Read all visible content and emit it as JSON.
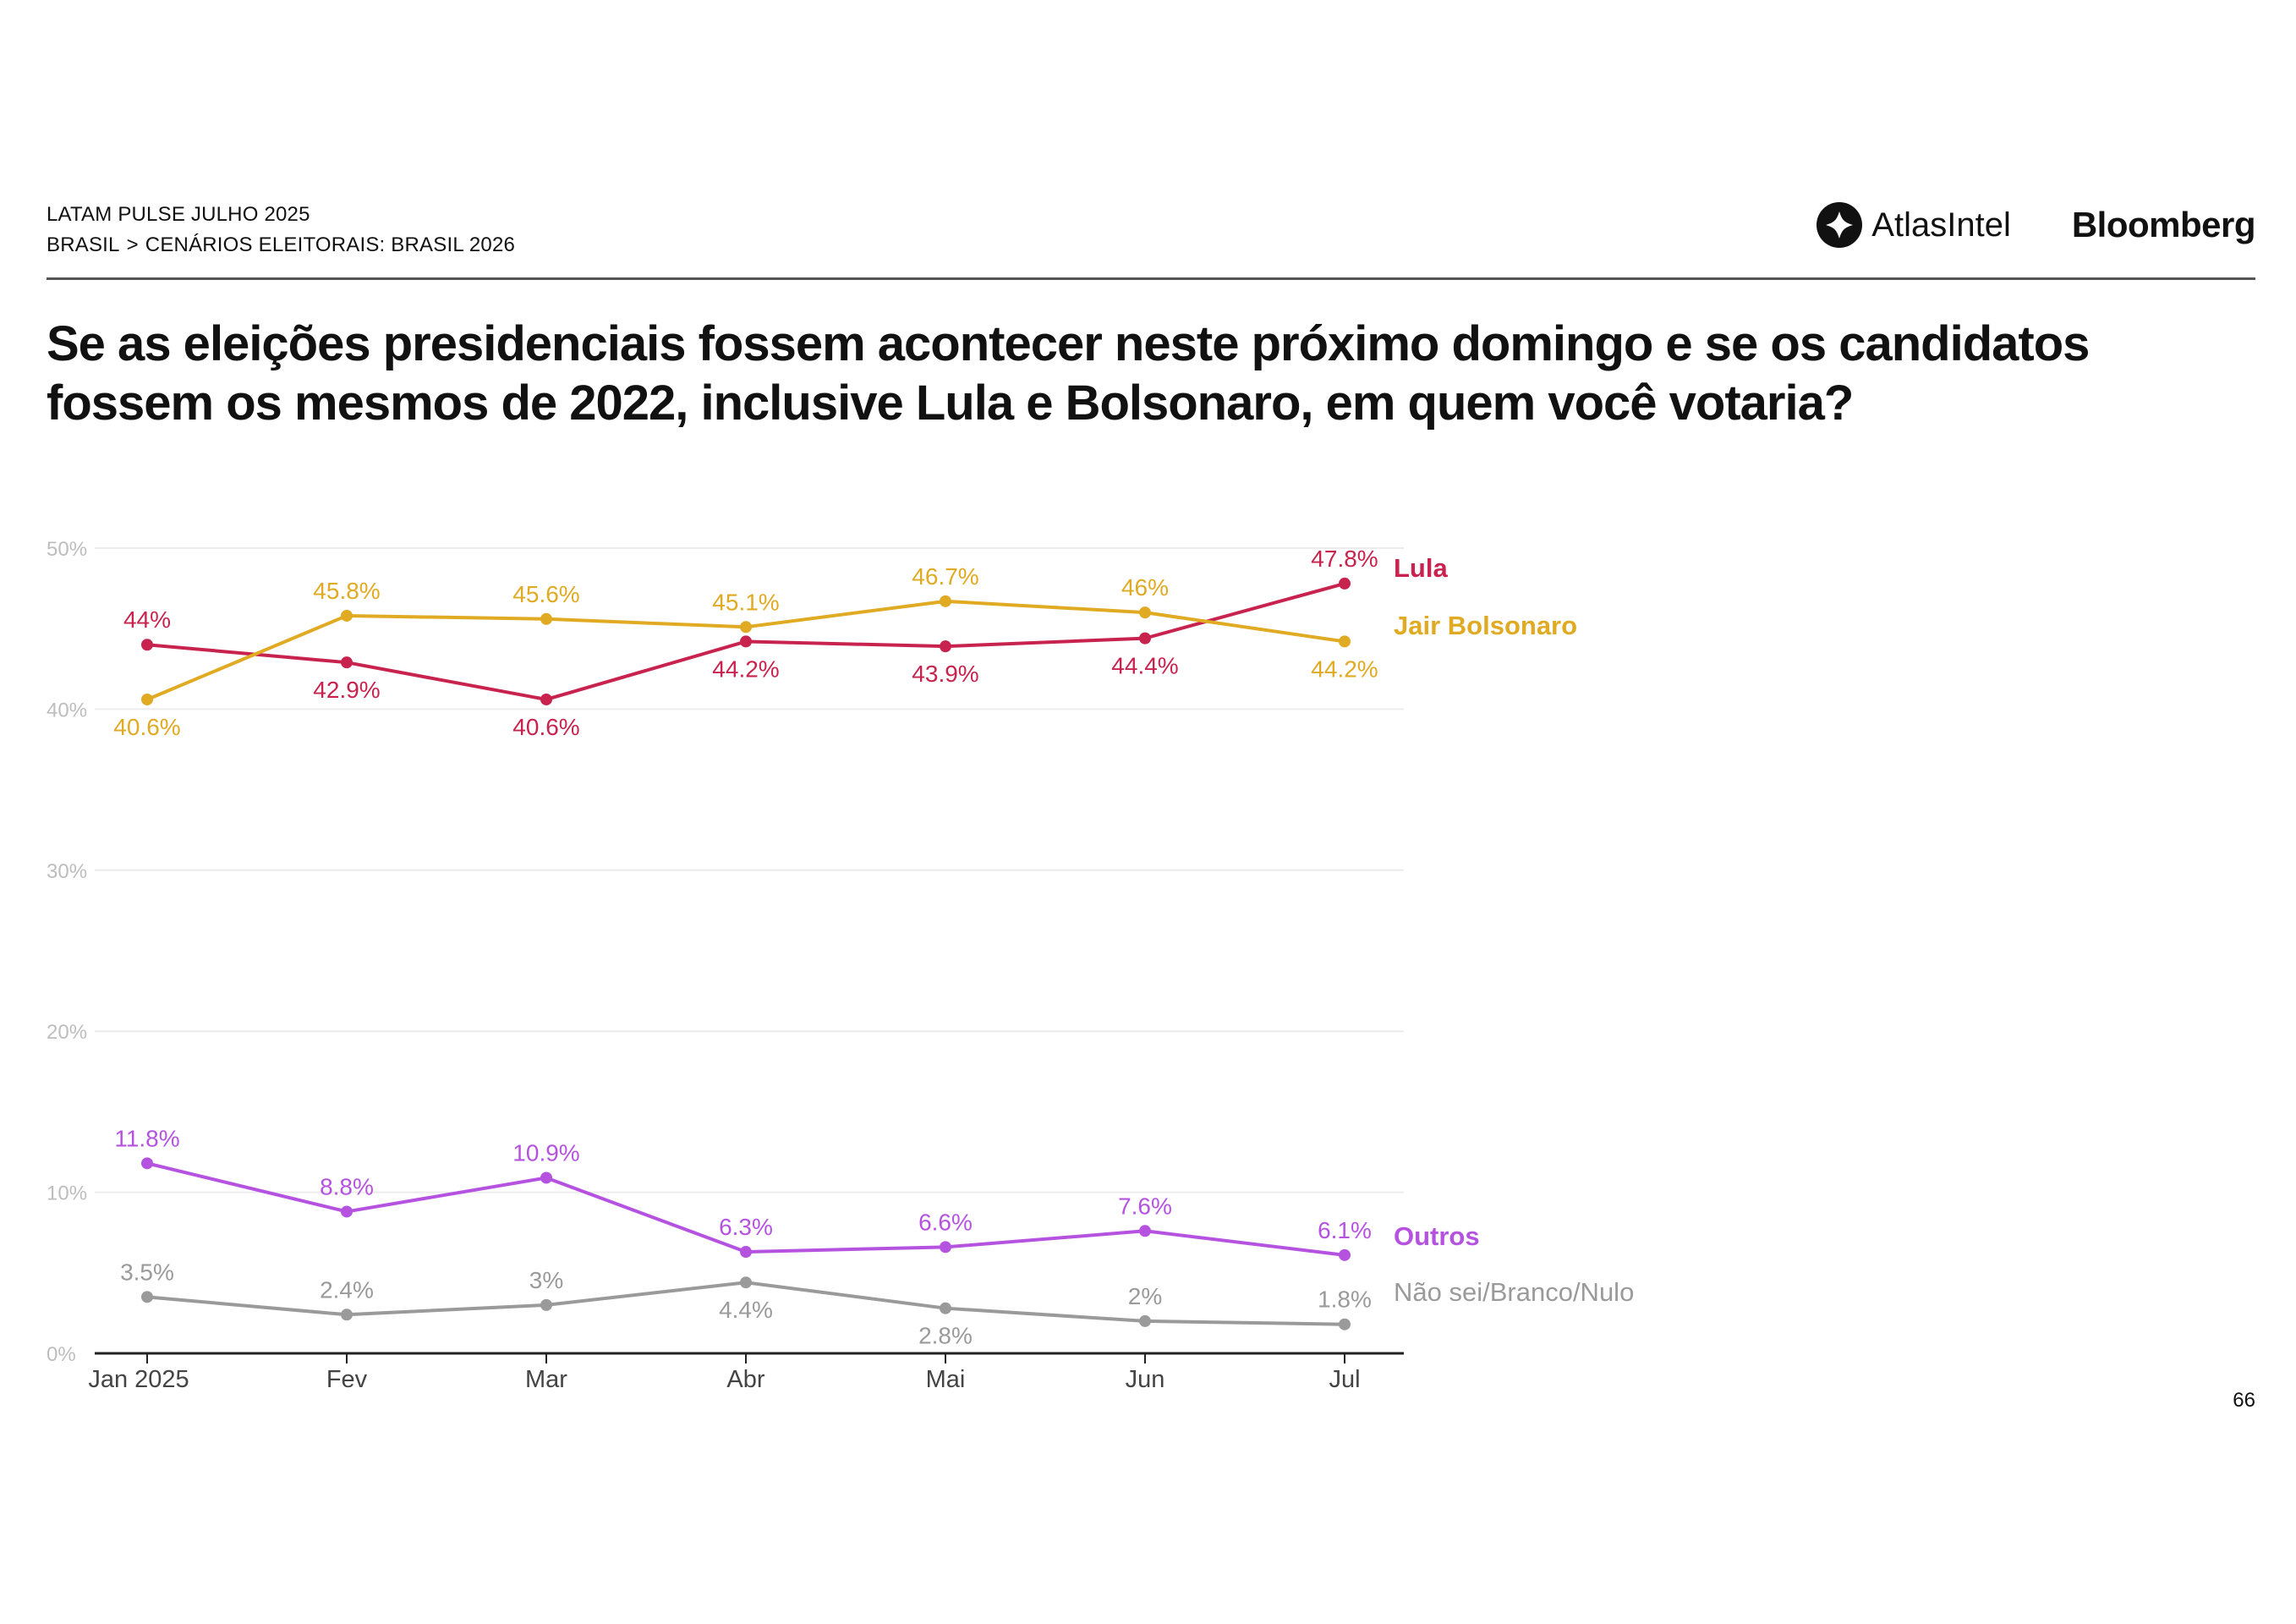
{
  "header": {
    "line1": "LATAM PULSE JULHO 2025",
    "breadcrumb_root": "BRASIL",
    "breadcrumb_sep": ">",
    "breadcrumb_section": "CENÁRIOS ELEITORAIS: BRASIL 2026"
  },
  "logos": {
    "atlas": "AtlasIntel",
    "bloomberg": "Bloomberg"
  },
  "title": "Se as eleições presidenciais fossem acontecer neste próximo domingo e se os candidatos fossem os mesmos de 2022, inclusive Lula e Bolsonaro, em quem você votaria?",
  "page_number": "66",
  "chart_data": {
    "type": "line",
    "title": "Se as eleições presidenciais fossem acontecer neste próximo domingo e se os candidatos fossem os mesmos de 2022, inclusive Lula e Bolsonaro, em quem você votaria?",
    "categories": [
      "Jan 2025",
      "Fev",
      "Mar",
      "Abr",
      "Mai",
      "Jun",
      "Jul"
    ],
    "ylim": [
      0,
      50
    ],
    "yticks": [
      0,
      10,
      20,
      30,
      40,
      50
    ],
    "ytick_labels": [
      "0%",
      "10%",
      "20%",
      "30%",
      "40%",
      "50%"
    ],
    "grid": true,
    "xlabel": "",
    "ylabel": "",
    "series": [
      {
        "name": "Lula",
        "color": "#c8234e",
        "values": [
          44,
          42.9,
          40.6,
          44.2,
          43.9,
          44.4,
          47.8
        ],
        "labels": [
          "44%",
          "42.9%",
          "40.6%",
          "44.2%",
          "43.9%",
          "44.4%",
          "47.8%"
        ],
        "label_pos": [
          "above",
          "below",
          "below",
          "below",
          "below",
          "below",
          "above"
        ]
      },
      {
        "name": "Jair Bolsonaro",
        "color": "#e0aa22",
        "values": [
          40.6,
          45.8,
          45.6,
          45.1,
          46.7,
          46,
          44.2
        ],
        "labels": [
          "40.6%",
          "45.8%",
          "45.6%",
          "45.1%",
          "46.7%",
          "46%",
          "44.2%"
        ],
        "label_pos": [
          "below",
          "above",
          "above",
          "above",
          "above",
          "above",
          "below"
        ]
      },
      {
        "name": "Outros",
        "color": "#b553e0",
        "values": [
          11.8,
          8.8,
          10.9,
          6.3,
          6.6,
          7.6,
          6.1
        ],
        "labels": [
          "11.8%",
          "8.8%",
          "10.9%",
          "6.3%",
          "6.6%",
          "7.6%",
          "6.1%"
        ],
        "label_pos": [
          "above",
          "above",
          "above",
          "above",
          "above",
          "above",
          "above"
        ]
      },
      {
        "name": "Não sei/Branco/Nulo",
        "color": "#9a9a9a",
        "values": [
          3.5,
          2.4,
          3,
          4.4,
          2.8,
          2,
          1.8
        ],
        "labels": [
          "3.5%",
          "2.4%",
          "3%",
          "4.4%",
          "2.8%",
          "2%",
          "1.8%"
        ],
        "label_pos": [
          "above",
          "above",
          "above",
          "below",
          "below",
          "above",
          "above"
        ]
      }
    ]
  }
}
